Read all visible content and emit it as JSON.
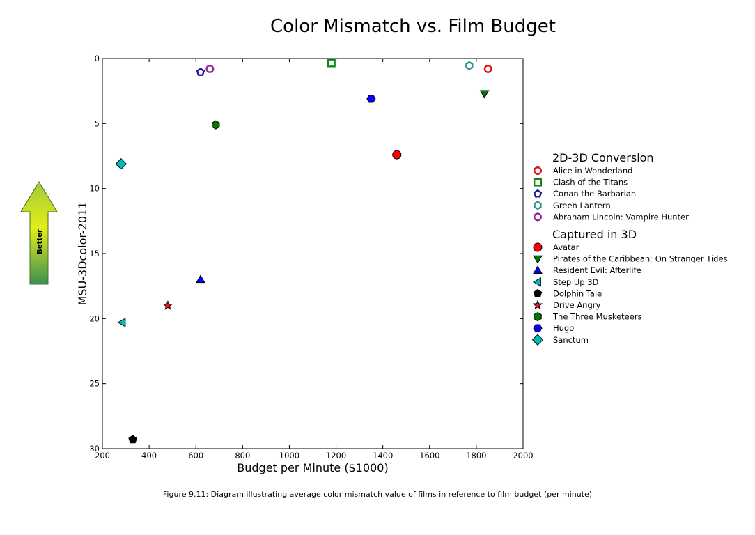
{
  "chart_data": {
    "type": "scatter",
    "title": "Color Mismatch vs. Film Budget",
    "xlabel": "Budget per Minute ($1000)",
    "ylabel": "MSU-3Dcolor-2011",
    "xlim": [
      200,
      2000
    ],
    "ylim": [
      0,
      30
    ],
    "y_inverted": true,
    "x_ticks": [
      "200",
      "400",
      "600",
      "800",
      "1000",
      "1200",
      "1400",
      "1600",
      "1800",
      "2000"
    ],
    "y_ticks": [
      "0",
      "5",
      "10",
      "15",
      "20",
      "25",
      "30"
    ],
    "grid": false,
    "legend_placement": "right",
    "arrow_label": "Better",
    "caption": "Figure 9.11: Diagram illustrating average color mismatch value of films in reference to film budget (per minute)",
    "groups": [
      {
        "title": "2D-3D Conversion",
        "series": [
          {
            "name": "Alice in Wonderland",
            "marker": "circle",
            "color": "#dd1111",
            "hollow": true,
            "x": 1850,
            "y": 0.8
          },
          {
            "name": "Clash of the Titans",
            "marker": "square",
            "color": "#118811",
            "hollow": true,
            "x": 1180,
            "y": 0.35
          },
          {
            "name": "Conan the Barbarian",
            "marker": "pentagon",
            "color": "#1a1a99",
            "hollow": true,
            "x": 620,
            "y": 1.05
          },
          {
            "name": "Green Lantern",
            "marker": "hexagon",
            "color": "#22998a",
            "hollow": true,
            "x": 1770,
            "y": 0.55
          },
          {
            "name": "Abraham Lincoln: Vampire Hunter",
            "marker": "circle",
            "color": "#992299",
            "hollow": true,
            "x": 660,
            "y": 0.8
          }
        ]
      },
      {
        "title": "Captured in 3D",
        "series": [
          {
            "name": "Avatar",
            "marker": "circle",
            "color": "#ff0000",
            "hollow": false,
            "x": 1460,
            "y": 7.4
          },
          {
            "name": "Pirates of the Caribbean: On Stranger Tides",
            "marker": "triangle-down",
            "color": "#007700",
            "hollow": false,
            "x": 1835,
            "y": 2.7
          },
          {
            "name": "Resident Evil: Afterlife",
            "marker": "triangle-up",
            "color": "#0000ff",
            "hollow": false,
            "x": 620,
            "y": 17.0
          },
          {
            "name": "Step Up 3D",
            "marker": "triangle-left",
            "color": "#00bbbb",
            "hollow": false,
            "x": 285,
            "y": 20.3
          },
          {
            "name": "Dolphin Tale",
            "marker": "pentagon",
            "color": "#000000",
            "hollow": false,
            "x": 330,
            "y": 29.3
          },
          {
            "name": "Drive Angry",
            "marker": "star",
            "color": "#ee1111",
            "hollow": false,
            "x": 480,
            "y": 19.0
          },
          {
            "name": "The Three Musketeers",
            "marker": "hexagon",
            "color": "#007700",
            "hollow": false,
            "x": 685,
            "y": 5.1
          },
          {
            "name": "Hugo",
            "marker": "hexagon-flat",
            "color": "#0000ff",
            "hollow": false,
            "x": 1350,
            "y": 3.1
          },
          {
            "name": "Sanctum",
            "marker": "diamond",
            "color": "#00bbbb",
            "hollow": false,
            "x": 280,
            "y": 8.1
          }
        ]
      }
    ]
  }
}
